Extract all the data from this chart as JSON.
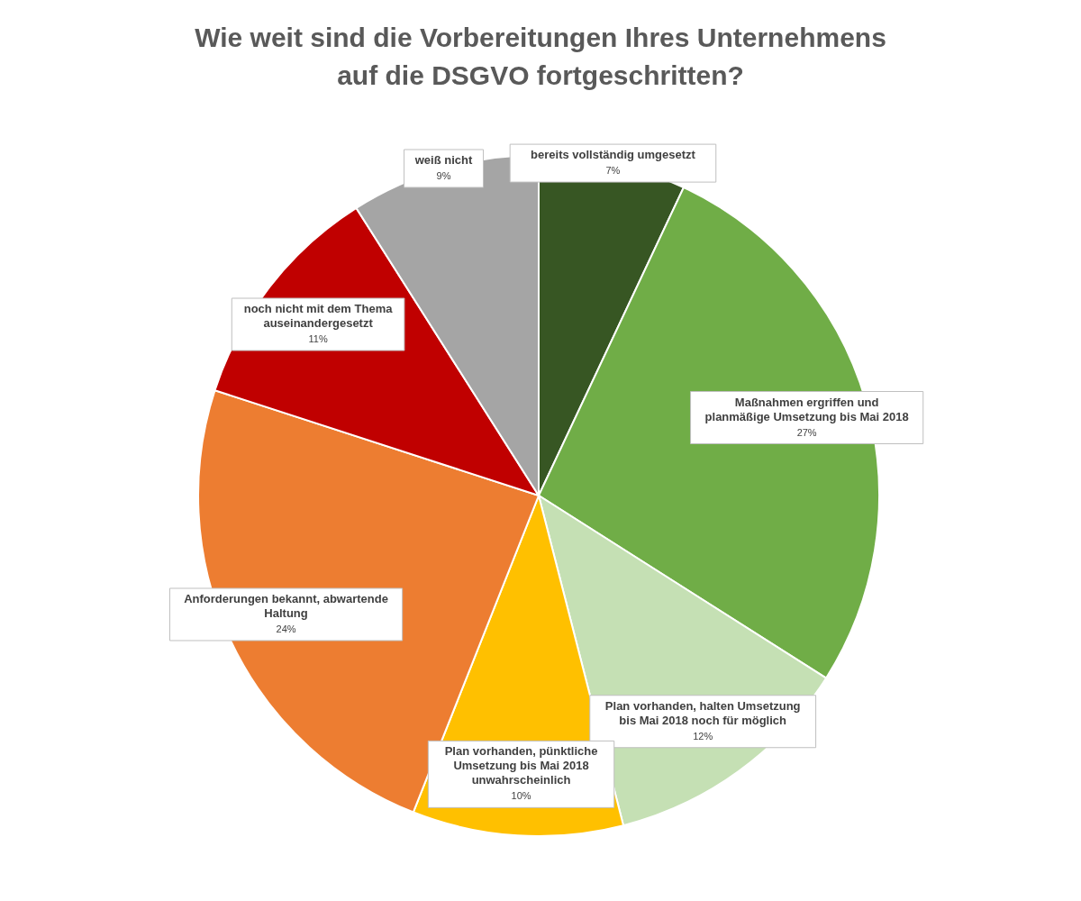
{
  "chart_data": {
    "type": "pie",
    "title": [
      "Wie weit sind die Vorbereitungen Ihres Unternehmens",
      "auf die DSGVO fortgeschritten?"
    ],
    "categories": [
      "bereits vollständig umgesetzt",
      "Maßnahmen ergriffen und planmäßige Umsetzung bis Mai 2018",
      "Plan vorhanden, halten Umsetzung bis Mai 2018 noch für möglich",
      "Plan vorhanden, pünktliche Umsetzung bis Mai 2018 unwahrscheinlich",
      "Anforderungen bekannt, abwartende Haltung",
      "noch nicht mit dem Thema auseinandergesetzt",
      "weiß nicht"
    ],
    "values": [
      7,
      27,
      12,
      10,
      24,
      11,
      9
    ],
    "colors": [
      "#375623",
      "#70ad47",
      "#c5e0b4",
      "#ffc000",
      "#ed7d31",
      "#c00000",
      "#a5a5a5"
    ],
    "value_labels": [
      "7%",
      "27%",
      "12%",
      "10%",
      "24%",
      "11%",
      "9%"
    ]
  }
}
